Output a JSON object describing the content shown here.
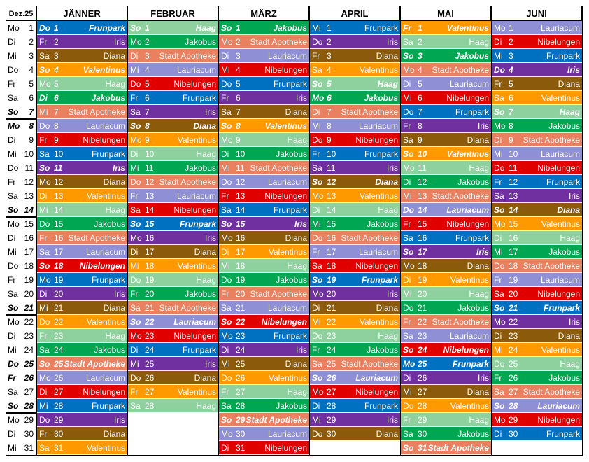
{
  "dec": {
    "title": "Dez.25",
    "days": [
      [
        "Mo",
        1
      ],
      [
        "Di",
        2
      ],
      [
        "Mi",
        3
      ],
      [
        "Do",
        4
      ],
      [
        "Fr",
        5
      ],
      [
        "Sa",
        6
      ],
      [
        "So",
        7,
        true
      ],
      [
        "Mo",
        8,
        true
      ],
      [
        "Di",
        9
      ],
      [
        "Mi",
        10
      ],
      [
        "Do",
        11
      ],
      [
        "Fr",
        12
      ],
      [
        "Sa",
        13
      ],
      [
        "So",
        14,
        true
      ],
      [
        "Mo",
        15
      ],
      [
        "Di",
        16
      ],
      [
        "Mi",
        17
      ],
      [
        "Do",
        18
      ],
      [
        "Fr",
        19
      ],
      [
        "Sa",
        20
      ],
      [
        "So",
        21,
        true
      ],
      [
        "Mo",
        22
      ],
      [
        "Di",
        23
      ],
      [
        "Mi",
        24
      ],
      [
        "Do",
        25,
        true
      ],
      [
        "Fr",
        26,
        true
      ],
      [
        "Sa",
        27
      ],
      [
        "So",
        28,
        true
      ],
      [
        "Mo",
        29
      ],
      [
        "Di",
        30
      ],
      [
        "Mi",
        31
      ]
    ]
  },
  "colors": {
    "Frunpark": "#0070c0",
    "Iris": "#7030a0",
    "Diana": "#8b5a0b",
    "Valentinus": "#ff9900",
    "Haag": "#8fd19e",
    "Jakobus": "#00a651",
    "Stadt Apotheke": "#e9805f",
    "Lauriacum": "#8f8fd6",
    "Nibelungen": "#e00000"
  },
  "months": [
    {
      "name": "JÄNNER",
      "days": [
        [
          "Do",
          1,
          "Frunpark",
          true
        ],
        [
          "Fr",
          2,
          "Iris"
        ],
        [
          "Sa",
          3,
          "Diana"
        ],
        [
          "So",
          4,
          "Valentinus",
          true
        ],
        [
          "Mo",
          5,
          "Haag"
        ],
        [
          "Di",
          6,
          "Jakobus",
          true
        ],
        [
          "Mi",
          7,
          "Stadt Apotheke"
        ],
        [
          "Do",
          8,
          "Lauriacum"
        ],
        [
          "Fr",
          9,
          "Nibelungen"
        ],
        [
          "Sa",
          10,
          "Frunpark"
        ],
        [
          "So",
          11,
          "Iris",
          true
        ],
        [
          "Mo",
          12,
          "Diana"
        ],
        [
          "Di",
          13,
          "Valentinus"
        ],
        [
          "Mi",
          14,
          "Haag"
        ],
        [
          "Do",
          15,
          "Jakobus"
        ],
        [
          "Fr",
          16,
          "Stadt Apotheke"
        ],
        [
          "Sa",
          17,
          "Lauriacum"
        ],
        [
          "So",
          18,
          "Nibelungen",
          true
        ],
        [
          "Mo",
          19,
          "Frunpark"
        ],
        [
          "Di",
          20,
          "Iris"
        ],
        [
          "Mi",
          21,
          "Diana"
        ],
        [
          "Do",
          22,
          "Valentinus"
        ],
        [
          "Fr",
          23,
          "Haag"
        ],
        [
          "Sa",
          24,
          "Jakobus"
        ],
        [
          "So",
          25,
          "Stadt Apotheke",
          true
        ],
        [
          "Mo",
          26,
          "Lauriacum"
        ],
        [
          "Di",
          27,
          "Nibelungen"
        ],
        [
          "Mi",
          28,
          "Frunpark"
        ],
        [
          "Do",
          29,
          "Iris"
        ],
        [
          "Fr",
          30,
          "Diana"
        ],
        [
          "Sa",
          31,
          "Valentinus"
        ]
      ]
    },
    {
      "name": "FEBRUAR",
      "days": [
        [
          "So",
          1,
          "Haag",
          true
        ],
        [
          "Mo",
          2,
          "Jakobus"
        ],
        [
          "Di",
          3,
          "Stadt Apotheke"
        ],
        [
          "Mi",
          4,
          "Lauriacum"
        ],
        [
          "Do",
          5,
          "Nibelungen"
        ],
        [
          "Fr",
          6,
          "Frunpark"
        ],
        [
          "Sa",
          7,
          "Iris"
        ],
        [
          "So",
          8,
          "Diana",
          true
        ],
        [
          "Mo",
          9,
          "Valentinus"
        ],
        [
          "Di",
          10,
          "Haag"
        ],
        [
          "Mi",
          11,
          "Jakobus"
        ],
        [
          "Do",
          12,
          "Stadt Apotheke"
        ],
        [
          "Fr",
          13,
          "Lauriacum"
        ],
        [
          "Sa",
          14,
          "Nibelungen"
        ],
        [
          "So",
          15,
          "Frunpark",
          true
        ],
        [
          "Mo",
          16,
          "Iris"
        ],
        [
          "Di",
          17,
          "Diana"
        ],
        [
          "Mi",
          18,
          "Valentinus"
        ],
        [
          "Do",
          19,
          "Haag"
        ],
        [
          "Fr",
          20,
          "Jakobus"
        ],
        [
          "Sa",
          21,
          "Stadt Apotheke"
        ],
        [
          "So",
          22,
          "Lauriacum",
          true
        ],
        [
          "Mo",
          23,
          "Nibelungen"
        ],
        [
          "Di",
          24,
          "Frunpark"
        ],
        [
          "Mi",
          25,
          "Iris"
        ],
        [
          "Do",
          26,
          "Diana"
        ],
        [
          "Fr",
          27,
          "Valentinus"
        ],
        [
          "Sa",
          28,
          "Haag"
        ]
      ]
    },
    {
      "name": "MÄRZ",
      "days": [
        [
          "So",
          1,
          "Jakobus",
          true
        ],
        [
          "Mo",
          2,
          "Stadt Apotheke"
        ],
        [
          "Di",
          3,
          "Lauriacum"
        ],
        [
          "Mi",
          4,
          "Nibelungen"
        ],
        [
          "Do",
          5,
          "Frunpark"
        ],
        [
          "Fr",
          6,
          "Iris"
        ],
        [
          "Sa",
          7,
          "Diana"
        ],
        [
          "So",
          8,
          "Valentinus",
          true
        ],
        [
          "Mo",
          9,
          "Haag"
        ],
        [
          "Di",
          10,
          "Jakobus"
        ],
        [
          "Mi",
          11,
          "Stadt Apotheke"
        ],
        [
          "Do",
          12,
          "Lauriacum"
        ],
        [
          "Fr",
          13,
          "Nibelungen"
        ],
        [
          "Sa",
          14,
          "Frunpark"
        ],
        [
          "So",
          15,
          "Iris",
          true
        ],
        [
          "Mo",
          16,
          "Diana"
        ],
        [
          "Di",
          17,
          "Valentinus"
        ],
        [
          "Mi",
          18,
          "Haag"
        ],
        [
          "Do",
          19,
          "Jakobus"
        ],
        [
          "Fr",
          20,
          "Stadt Apotheke"
        ],
        [
          "Sa",
          21,
          "Lauriacum"
        ],
        [
          "So",
          22,
          "Nibelungen",
          true
        ],
        [
          "Mo",
          23,
          "Frunpark"
        ],
        [
          "Di",
          24,
          "Iris"
        ],
        [
          "Mi",
          25,
          "Diana"
        ],
        [
          "Do",
          26,
          "Valentinus"
        ],
        [
          "Fr",
          27,
          "Haag"
        ],
        [
          "Sa",
          28,
          "Jakobus"
        ],
        [
          "So",
          29,
          "Stadt Apotheke",
          true
        ],
        [
          "Mo",
          30,
          "Lauriacum"
        ],
        [
          "Di",
          31,
          "Nibelungen"
        ]
      ]
    },
    {
      "name": "APRIL",
      "days": [
        [
          "Mi",
          1,
          "Frunpark"
        ],
        [
          "Do",
          2,
          "Iris"
        ],
        [
          "Fr",
          3,
          "Diana"
        ],
        [
          "Sa",
          4,
          "Valentinus"
        ],
        [
          "So",
          5,
          "Haag",
          true
        ],
        [
          "Mo",
          6,
          "Jakobus",
          true
        ],
        [
          "Di",
          7,
          "Stadt Apotheke"
        ],
        [
          "Mi",
          8,
          "Lauriacum"
        ],
        [
          "Do",
          9,
          "Nibelungen"
        ],
        [
          "Fr",
          10,
          "Frunpark"
        ],
        [
          "Sa",
          11,
          "Iris"
        ],
        [
          "So",
          12,
          "Diana",
          true
        ],
        [
          "Mo",
          13,
          "Valentinus"
        ],
        [
          "Di",
          14,
          "Haag"
        ],
        [
          "Mi",
          15,
          "Jakobus"
        ],
        [
          "Do",
          16,
          "Stadt Apotheke"
        ],
        [
          "Fr",
          17,
          "Lauriacum"
        ],
        [
          "Sa",
          18,
          "Nibelungen"
        ],
        [
          "So",
          19,
          "Frunpark",
          true
        ],
        [
          "Mo",
          20,
          "Iris"
        ],
        [
          "Di",
          21,
          "Diana"
        ],
        [
          "Mi",
          22,
          "Valentinus"
        ],
        [
          "Do",
          23,
          "Haag"
        ],
        [
          "Fr",
          24,
          "Jakobus"
        ],
        [
          "Sa",
          25,
          "Stadt Apotheke"
        ],
        [
          "So",
          26,
          "Lauriacum",
          true
        ],
        [
          "Mo",
          27,
          "Nibelungen"
        ],
        [
          "Di",
          28,
          "Frunpark"
        ],
        [
          "Mi",
          29,
          "Iris"
        ],
        [
          "Do",
          30,
          "Diana"
        ]
      ]
    },
    {
      "name": "MAI",
      "days": [
        [
          "Fr",
          1,
          "Valentinus",
          true
        ],
        [
          "Sa",
          2,
          "Haag"
        ],
        [
          "So",
          3,
          "Jakobus",
          true
        ],
        [
          "Mo",
          4,
          "Stadt Apotheke"
        ],
        [
          "Di",
          5,
          "Lauriacum"
        ],
        [
          "Mi",
          6,
          "Nibelungen"
        ],
        [
          "Do",
          7,
          "Frunpark"
        ],
        [
          "Fr",
          8,
          "Iris"
        ],
        [
          "Sa",
          9,
          "Diana"
        ],
        [
          "So",
          10,
          "Valentinus",
          true
        ],
        [
          "Mo",
          11,
          "Haag"
        ],
        [
          "Di",
          12,
          "Jakobus"
        ],
        [
          "Mi",
          13,
          "Stadt Apotheke"
        ],
        [
          "Do",
          14,
          "Lauriacum",
          true
        ],
        [
          "Fr",
          15,
          "Nibelungen"
        ],
        [
          "Sa",
          16,
          "Frunpark"
        ],
        [
          "So",
          17,
          "Iris",
          true
        ],
        [
          "Mo",
          18,
          "Diana"
        ],
        [
          "Di",
          19,
          "Valentinus"
        ],
        [
          "Mi",
          20,
          "Haag"
        ],
        [
          "Do",
          21,
          "Jakobus"
        ],
        [
          "Fr",
          22,
          "Stadt Apotheke"
        ],
        [
          "Sa",
          23,
          "Lauriacum"
        ],
        [
          "So",
          24,
          "Nibelungen",
          true
        ],
        [
          "Mo",
          25,
          "Frunpark",
          true
        ],
        [
          "Di",
          26,
          "Iris"
        ],
        [
          "Mi",
          27,
          "Diana"
        ],
        [
          "Do",
          28,
          "Valentinus"
        ],
        [
          "Fr",
          29,
          "Haag"
        ],
        [
          "Sa",
          30,
          "Jakobus"
        ],
        [
          "So",
          31,
          "Stadt Apotheke",
          true
        ]
      ]
    },
    {
      "name": "JUNI",
      "days": [
        [
          "Mo",
          1,
          "Lauriacum"
        ],
        [
          "Di",
          2,
          "Nibelungen"
        ],
        [
          "Mi",
          3,
          "Frunpark"
        ],
        [
          "Do",
          4,
          "Iris",
          true
        ],
        [
          "Fr",
          5,
          "Diana"
        ],
        [
          "Sa",
          6,
          "Valentinus"
        ],
        [
          "So",
          7,
          "Haag",
          true
        ],
        [
          "Mo",
          8,
          "Jakobus"
        ],
        [
          "Di",
          9,
          "Stadt Apotheke"
        ],
        [
          "Mi",
          10,
          "Lauriacum"
        ],
        [
          "Do",
          11,
          "Nibelungen"
        ],
        [
          "Fr",
          12,
          "Frunpark"
        ],
        [
          "Sa",
          13,
          "Iris"
        ],
        [
          "So",
          14,
          "Diana",
          true
        ],
        [
          "Mo",
          15,
          "Valentinus"
        ],
        [
          "Di",
          16,
          "Haag"
        ],
        [
          "Mi",
          17,
          "Jakobus"
        ],
        [
          "Do",
          18,
          "Stadt Apotheke"
        ],
        [
          "Fr",
          19,
          "Lauriacum"
        ],
        [
          "Sa",
          20,
          "Nibelungen"
        ],
        [
          "So",
          21,
          "Frunpark",
          true
        ],
        [
          "Mo",
          22,
          "Iris"
        ],
        [
          "Di",
          23,
          "Diana"
        ],
        [
          "Mi",
          24,
          "Valentinus"
        ],
        [
          "Do",
          25,
          "Haag"
        ],
        [
          "Fr",
          26,
          "Jakobus"
        ],
        [
          "Sa",
          27,
          "Stadt Apotheke"
        ],
        [
          "So",
          28,
          "Lauriacum",
          true
        ],
        [
          "Mo",
          29,
          "Nibelungen"
        ],
        [
          "Di",
          30,
          "Frunpark"
        ]
      ]
    }
  ]
}
